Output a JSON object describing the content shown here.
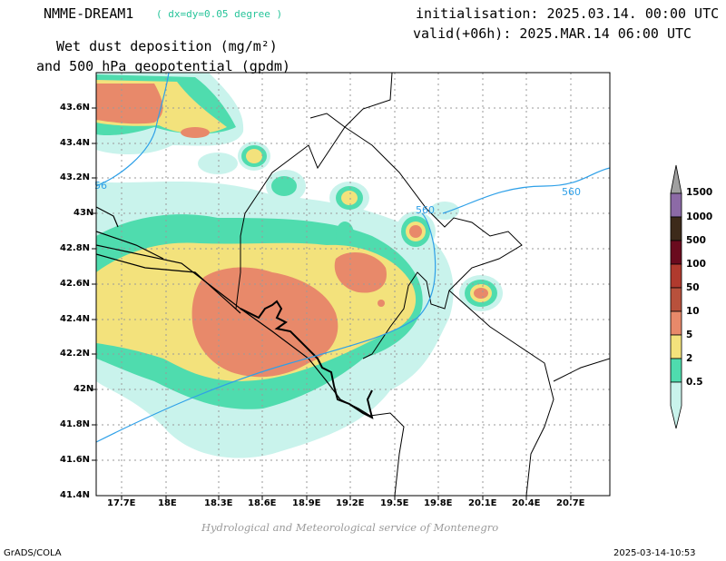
{
  "header": {
    "model": "NMME-DREAM1",
    "resolution": "( dx=dy=0.05 degree )",
    "title_line1": "Wet dust deposition (mg/m²)",
    "title_line2": "and 500 hPa geopotential (gpdm)",
    "init": "initialisation: 2025.03.14. 00:00 UTC",
    "valid": "valid(+06h): 2025.MAR.14 06:00 UTC"
  },
  "axes": {
    "lat_labels": [
      "43.6N",
      "43.4N",
      "43.2N",
      "43N",
      "42.8N",
      "42.6N",
      "42.4N",
      "42.2N",
      "42N",
      "41.8N",
      "41.6N",
      "41.4N"
    ],
    "lon_labels": [
      "17.7E",
      "18E",
      "18.3E",
      "18.6E",
      "18.9E",
      "19.2E",
      "19.5E",
      "19.8E",
      "20.1E",
      "20.4E",
      "20.7E"
    ]
  },
  "contours": {
    "labels": [
      "56",
      "560",
      "560"
    ],
    "line_color": "#2ea0e8"
  },
  "colorbar": {
    "levels": [
      "1500",
      "1000",
      "500",
      "100",
      "50",
      "10",
      "5",
      "2",
      "0.5"
    ],
    "colors": [
      "#8c6aa6",
      "#3d2a1a",
      "#6a0b1e",
      "#b03a2e",
      "#b8513c",
      "#e8896a",
      "#f3e27c",
      "#4fdcae",
      "#c9f3ec"
    ],
    "cap_top": "#a0a0a0"
  },
  "footer": {
    "credit": "Hydrological and Meteorological service of Montenegro",
    "left": "GrADS/COLA",
    "right": "2025-03-14-10:53"
  }
}
